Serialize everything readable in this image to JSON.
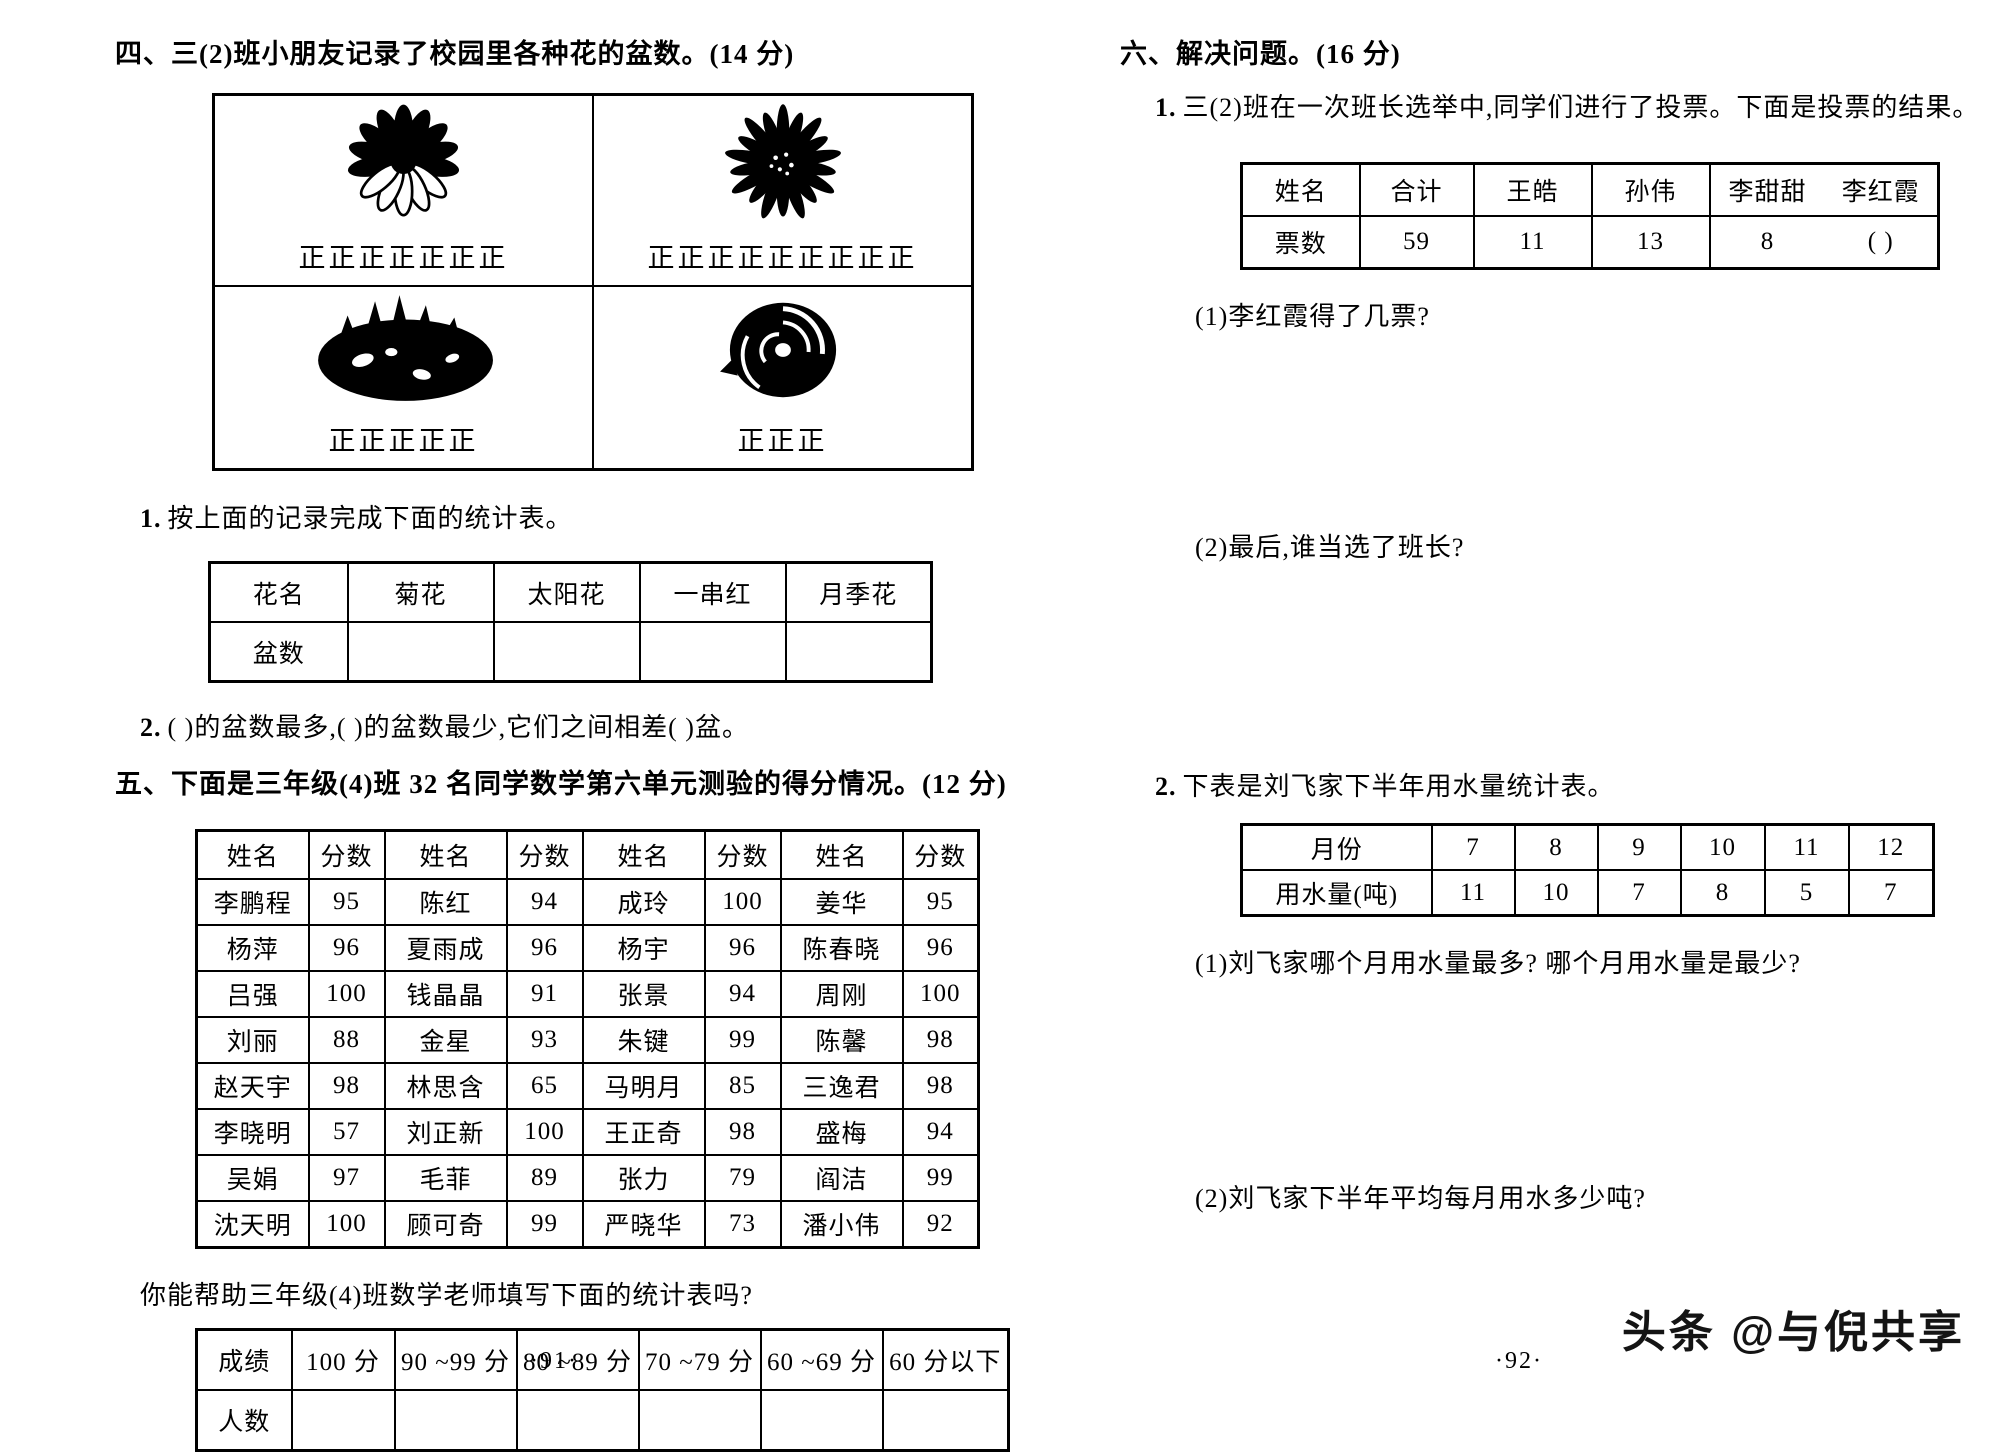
{
  "document": {
    "left_page": {
      "section4_title": "四、三(2)班小朋友记录了校园里各种花的盆数。(14 分)",
      "tally_cells": [
        {
          "flower": "chrysanthemum",
          "tally": "正正正正正正正"
        },
        {
          "flower": "sunflower",
          "tally": "正正正正正正正正正"
        },
        {
          "flower": "salvia-cluster",
          "tally": "正正正正正"
        },
        {
          "flower": "rose",
          "tally": "正正正"
        }
      ],
      "q1_num": "1.",
      "q1_text": "按上面的记录完成下面的统计表。",
      "flower_stats_table": {
        "rows": [
          [
            "花名",
            "菊花",
            "太阳花",
            "一串红",
            "月季花"
          ],
          [
            "盆数",
            "",
            "",
            "",
            ""
          ]
        ]
      },
      "q2_num": "2.",
      "q2_text": "(        )的盆数最多,(        )的盆数最少,它们之间相差(      )盆。",
      "section5_title": "五、下面是三年级(4)班 32 名同学数学第六单元测验的得分情况。(12 分)",
      "score_table": {
        "headers": [
          "姓名",
          "分数",
          "姓名",
          "分数",
          "姓名",
          "分数",
          "姓名",
          "分数"
        ],
        "rows": [
          [
            "李鹏程",
            "95",
            "陈红",
            "94",
            "成玲",
            "100",
            "姜华",
            "95"
          ],
          [
            "杨萍",
            "96",
            "夏雨成",
            "96",
            "杨宇",
            "96",
            "陈春晓",
            "96"
          ],
          [
            "吕强",
            "100",
            "钱晶晶",
            "91",
            "张景",
            "94",
            "周刚",
            "100"
          ],
          [
            "刘丽",
            "88",
            "金星",
            "93",
            "朱键",
            "99",
            "陈馨",
            "98"
          ],
          [
            "赵天宇",
            "98",
            "林思含",
            "65",
            "马明月",
            "85",
            "三逸君",
            "98"
          ],
          [
            "李晓明",
            "57",
            "刘正新",
            "100",
            "王正奇",
            "98",
            "盛梅",
            "94"
          ],
          [
            "吴娟",
            "97",
            "毛菲",
            "89",
            "张力",
            "79",
            "阎洁",
            "99"
          ],
          [
            "沈天明",
            "100",
            "顾可奇",
            "99",
            "严晓华",
            "73",
            "潘小伟",
            "92"
          ]
        ]
      },
      "helper_text": "你能帮助三年级(4)班数学老师填写下面的统计表吗?",
      "grade_range_table": {
        "rows": [
          [
            "成绩",
            "100 分",
            "90 ~99 分",
            "80 ~89 分",
            "70 ~79 分",
            "60 ~69 分",
            "60 分以下"
          ],
          [
            "人数",
            "",
            "",
            "",
            "",
            "",
            ""
          ]
        ]
      },
      "page_number": "·91·"
    },
    "right_page": {
      "section6_title": "六、解决问题。(16 分)",
      "q1_num": "1.",
      "q1_text": "三(2)班在一次班长选举中,同学们进行了投票。下面是投票的结果。",
      "vote_table": {
        "rows": [
          [
            "姓名",
            "合计",
            "王皓",
            "孙伟",
            "李甜甜",
            "李红霞"
          ],
          [
            "票数",
            "59",
            "11",
            "13",
            "8",
            "(      )"
          ]
        ]
      },
      "q1_sub1": "(1)李红霞得了几票?",
      "q1_sub2": "(2)最后,谁当选了班长?",
      "q2_num": "2.",
      "q2_text": "下表是刘飞家下半年用水量统计表。",
      "water_table": {
        "rows": [
          [
            "月份",
            "7",
            "8",
            "9",
            "10",
            "11",
            "12"
          ],
          [
            "用水量(吨)",
            "11",
            "10",
            "7",
            "8",
            "5",
            "7"
          ]
        ]
      },
      "q2_sub1": "(1)刘飞家哪个月用水量最多? 哪个月用水量是最少?",
      "q2_sub2": "(2)刘飞家下半年平均每月用水多少吨?",
      "page_number": "·92·"
    },
    "watermark": "头条 @与倪共享"
  }
}
